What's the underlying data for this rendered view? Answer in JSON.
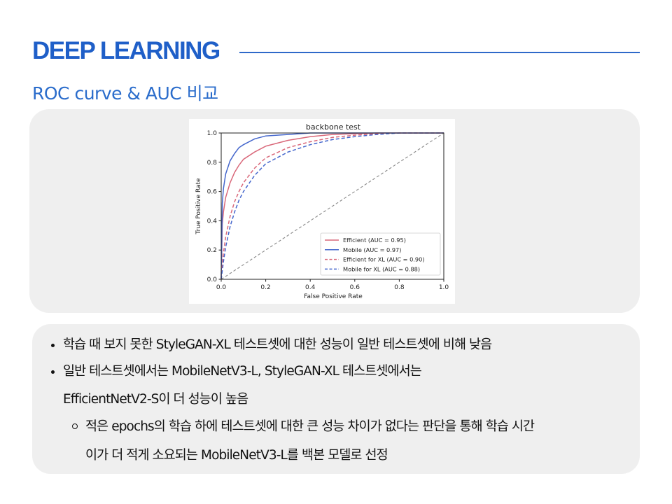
{
  "header": {
    "title": "DEEP LEARNING"
  },
  "subtitle": "ROC curve & AUC 비교",
  "chart_data": {
    "type": "line",
    "title": "backbone test",
    "xlabel": "False Positive Rate",
    "ylabel": "True Positive Rate",
    "xlim": [
      0.0,
      1.0
    ],
    "ylim": [
      0.0,
      1.0
    ],
    "xticks": [
      "0.0",
      "0.2",
      "0.4",
      "0.6",
      "0.8",
      "1.0"
    ],
    "yticks": [
      "0.0",
      "0.2",
      "0.4",
      "0.6",
      "0.8",
      "1.0"
    ],
    "grid": false,
    "legend_position": "lower-right",
    "colors": {
      "efficient": "#d9687a",
      "mobile": "#4466cc",
      "diagonal": "#888888"
    },
    "series": [
      {
        "name": "Efficient (AUC = 0.95)",
        "style": "solid",
        "color": "#d9687a",
        "x": [
          0,
          0.005,
          0.01,
          0.02,
          0.04,
          0.06,
          0.08,
          0.1,
          0.15,
          0.2,
          0.3,
          0.4,
          0.5,
          0.6,
          0.7,
          0.8,
          1.0
        ],
        "y": [
          0,
          0.38,
          0.46,
          0.56,
          0.66,
          0.73,
          0.78,
          0.82,
          0.87,
          0.91,
          0.95,
          0.975,
          0.99,
          0.995,
          1.0,
          1.0,
          1.0
        ]
      },
      {
        "name": "Mobile (AUC = 0.97)",
        "style": "solid",
        "color": "#4466cc",
        "x": [
          0,
          0.005,
          0.01,
          0.02,
          0.04,
          0.06,
          0.08,
          0.1,
          0.15,
          0.2,
          0.3,
          0.4,
          0.5,
          0.6,
          0.7,
          0.8,
          1.0
        ],
        "y": [
          0,
          0.52,
          0.62,
          0.72,
          0.81,
          0.86,
          0.9,
          0.92,
          0.96,
          0.98,
          0.99,
          1.0,
          1.0,
          1.0,
          1.0,
          1.0,
          1.0
        ]
      },
      {
        "name": "Efficient for XL (AUC = 0.90)",
        "style": "dashed",
        "color": "#d9687a",
        "x": [
          0,
          0.005,
          0.01,
          0.02,
          0.04,
          0.06,
          0.08,
          0.1,
          0.15,
          0.2,
          0.3,
          0.4,
          0.5,
          0.6,
          0.7,
          0.8,
          0.9,
          1.0
        ],
        "y": [
          0,
          0.1,
          0.18,
          0.29,
          0.43,
          0.53,
          0.6,
          0.66,
          0.76,
          0.83,
          0.9,
          0.94,
          0.97,
          0.985,
          0.995,
          1.0,
          1.0,
          1.0
        ]
      },
      {
        "name": "Mobile for XL (AUC = 0.88)",
        "style": "dashed",
        "color": "#4466cc",
        "x": [
          0,
          0.005,
          0.01,
          0.02,
          0.04,
          0.06,
          0.08,
          0.1,
          0.15,
          0.2,
          0.3,
          0.4,
          0.5,
          0.6,
          0.7,
          0.8,
          0.9,
          1.0
        ],
        "y": [
          0,
          0.06,
          0.12,
          0.22,
          0.36,
          0.46,
          0.54,
          0.6,
          0.71,
          0.79,
          0.87,
          0.92,
          0.955,
          0.975,
          0.99,
          1.0,
          1.0,
          1.0
        ]
      },
      {
        "name": "",
        "style": "dashed",
        "color": "#888888",
        "x": [
          0,
          1.0
        ],
        "y": [
          0,
          1.0
        ]
      }
    ]
  },
  "notes": {
    "bullet1": "학습 때 보지 못한 StyleGAN-XL 테스트셋에 대한 성능이 일반 테스트셋에 비해 낮음",
    "bullet2_line1": "일반 테스트셋에서는 MobileNetV3-L, StyleGAN-XL 테스트셋에서는",
    "bullet2_line2": "EfficientNetV2-S이 더 성능이 높음",
    "sub_line1": "적은 epochs의 학습 하에 테스트셋에 대한 큰 성능 차이가 없다는 판단을 통해 학습 시간",
    "sub_line2": "이가 더 적게 소요되는 MobileNetV3-L를 백본 모델로 선정"
  }
}
